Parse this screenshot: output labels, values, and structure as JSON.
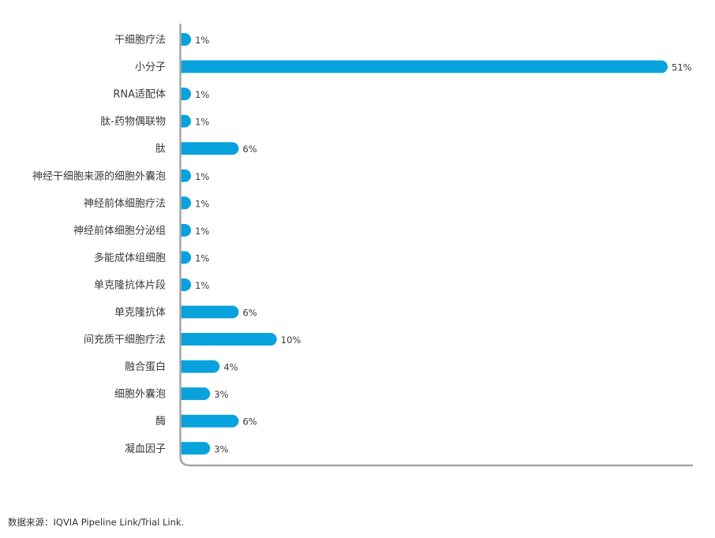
{
  "chart_data": {
    "type": "bar",
    "orientation": "horizontal",
    "categories": [
      "干细胞疗法",
      "小分子",
      "RNA适配体",
      "肽-药物偶联物",
      "肽",
      "神经干细胞来源的细胞外囊泡",
      "神经前体细胞疗法",
      "神经前体细胞分泌组",
      "多能成体组细胞",
      "单克隆抗体片段",
      "单克隆抗体",
      "间充质干细胞疗法",
      "融合蛋白",
      "细胞外囊泡",
      "酶",
      "凝血因子"
    ],
    "values": [
      1,
      51,
      1,
      1,
      6,
      1,
      1,
      1,
      1,
      1,
      6,
      10,
      4,
      3,
      6,
      3
    ],
    "value_labels": [
      "1%",
      "51%",
      "1%",
      "1%",
      "6%",
      "1%",
      "1%",
      "1%",
      "1%",
      "1%",
      "6%",
      "10%",
      "4%",
      "3%",
      "6%",
      "3%"
    ],
    "xlim": [
      0,
      51
    ],
    "grid": false,
    "legend": "none",
    "bar_color": "#0aa2dd",
    "axis_color": "#a6a6a6"
  },
  "source_note": "数据来源：IQVIA Pipeline Link/Trial Link."
}
